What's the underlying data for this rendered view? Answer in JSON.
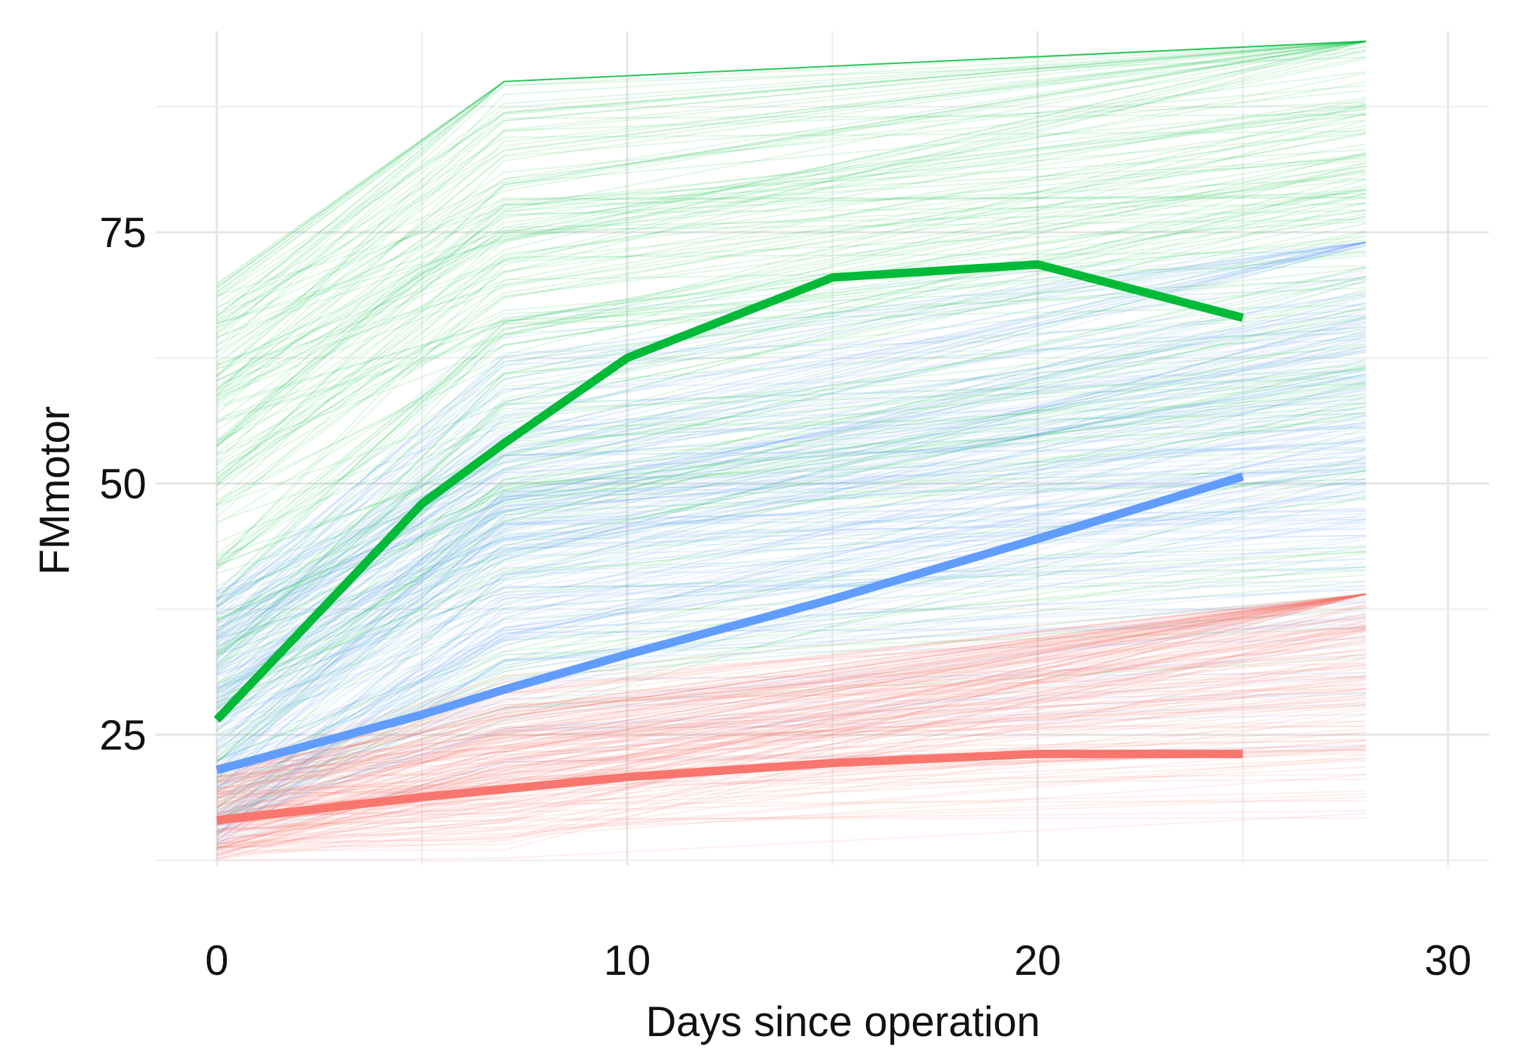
{
  "chart_data": {
    "type": "line",
    "title": "",
    "xlabel": "Days since operation",
    "ylabel": "FMmotor",
    "xlim": [
      -1.5,
      31
    ],
    "ylim": [
      12,
      95
    ],
    "x_major_ticks": [
      0,
      10,
      20,
      30
    ],
    "x_tick_labels": [
      "0",
      "10",
      "20",
      "30"
    ],
    "x_minor_gridlines": [
      5,
      15,
      25
    ],
    "y_major_ticks": [
      25,
      50,
      75
    ],
    "y_tick_labels": [
      "25",
      "50",
      "75"
    ],
    "y_minor_gridlines": [
      12.5,
      37.5,
      62.5,
      87.5
    ],
    "grid": true,
    "legend": "none",
    "series": [
      {
        "color": "#00BA38",
        "x": [
          0,
          5,
          7,
          10,
          15,
          20,
          25
        ],
        "y": [
          26.5,
          48,
          54,
          62.5,
          70.5,
          71.8,
          66.5
        ]
      },
      {
        "color": "#619CFF",
        "x": [
          0,
          5,
          7,
          10,
          15,
          20,
          25
        ],
        "y": [
          21.5,
          27,
          29.5,
          33,
          38.5,
          44.5,
          50.7
        ]
      },
      {
        "color": "#F8766D",
        "x": [
          0,
          5,
          7,
          10,
          15,
          20,
          25
        ],
        "y": [
          16.5,
          18.8,
          19.6,
          20.8,
          22.2,
          23.1,
          23.1
        ]
      }
    ],
    "background_individual_trajectories": {
      "description_free": true,
      "colors": [
        "#00BA38",
        "#619CFF",
        "#F8766D"
      ],
      "x_range": [
        0,
        28
      ]
    }
  }
}
